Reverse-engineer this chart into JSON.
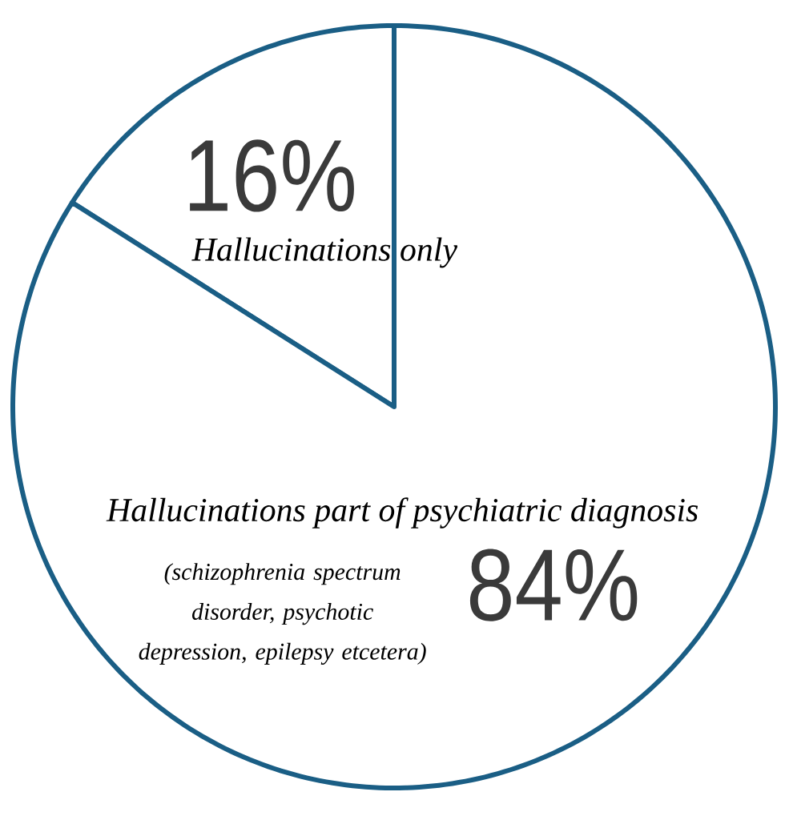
{
  "chart_data": {
    "type": "pie",
    "categories": [
      "Hallucinations only",
      "Hallucinations part of psychiatric diagnosis"
    ],
    "values": [
      16,
      84
    ],
    "colors": [
      "#ffffff",
      "#ffffff"
    ],
    "value_labels": [
      "16%",
      "84%"
    ],
    "annotations": [
      "(schizophrenia spectrum disorder, psychotic depression, epilepsy etcetera)"
    ]
  }
}
